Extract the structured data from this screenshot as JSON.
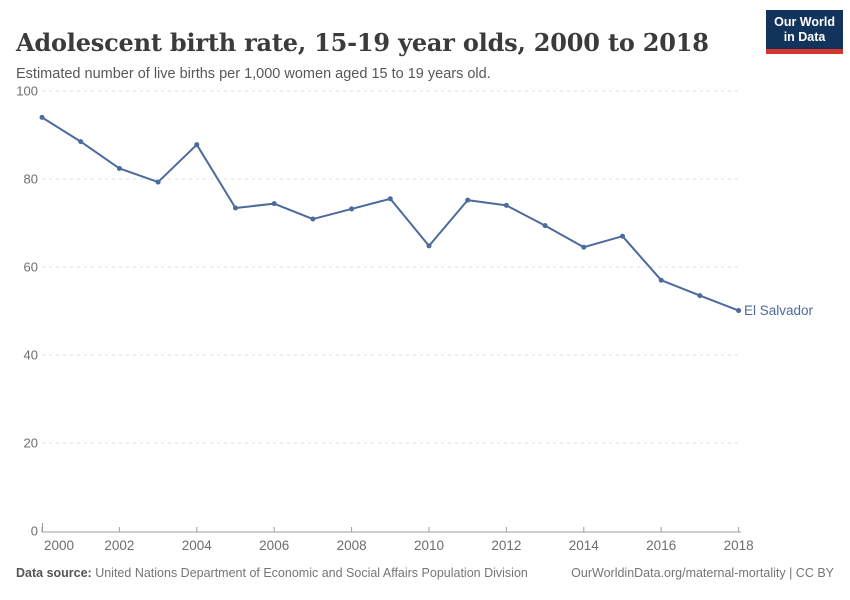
{
  "header": {
    "title": "Adolescent birth rate, 15-19 year olds, 2000 to 2018",
    "subtitle": "Estimated number of live births per 1,000 women aged 15 to 19 years old.",
    "logo": {
      "line1": "Our World",
      "line2": "in Data"
    }
  },
  "chart_data": {
    "type": "line",
    "title": "Adolescent birth rate, 15-19 year olds, 2000 to 2018",
    "subtitle": "Estimated number of live births per 1,000 women aged 15 to 19 years old.",
    "xlabel": "",
    "ylabel": "",
    "xlim": [
      2000,
      2018
    ],
    "ylim": [
      0,
      100
    ],
    "grid": "horizontal-dashed",
    "legend_position": "end-of-line-label",
    "xticks": [
      2000,
      2002,
      2004,
      2006,
      2008,
      2010,
      2012,
      2014,
      2016,
      2018
    ],
    "yticks": [
      0,
      20,
      40,
      60,
      80,
      100
    ],
    "x": [
      2000,
      2001,
      2002,
      2003,
      2004,
      2005,
      2006,
      2007,
      2008,
      2009,
      2010,
      2011,
      2012,
      2013,
      2014,
      2015,
      2016,
      2017,
      2018
    ],
    "series": [
      {
        "name": "El Salvador",
        "color": "#4C6A9C",
        "values": [
          94.0,
          88.5,
          82.4,
          79.3,
          87.8,
          73.4,
          74.4,
          70.9,
          73.2,
          75.5,
          64.8,
          75.2,
          74.0,
          69.4,
          64.5,
          67.0,
          57.0,
          53.5,
          50.1
        ]
      }
    ]
  },
  "footer": {
    "source_label": "Data source:",
    "source_text": " United Nations Department of Economic and Social Affairs Population Division",
    "credit": "OurWorldinData.org/maternal-mortality | CC BY"
  },
  "colors": {
    "line": "#4C6A9C",
    "grid": "#E0E0E0",
    "axis": "#9E9E9E",
    "tick_label": "#6E6E6E",
    "title": "#3B3B3B",
    "subtitle": "#575757",
    "footer": "#757575",
    "footer_label": "#555555",
    "entity_label": "#4C6A9C",
    "logo_bg": "#12335C",
    "logo_red": "#D6352B",
    "logo_text": "#FFFFFF"
  }
}
